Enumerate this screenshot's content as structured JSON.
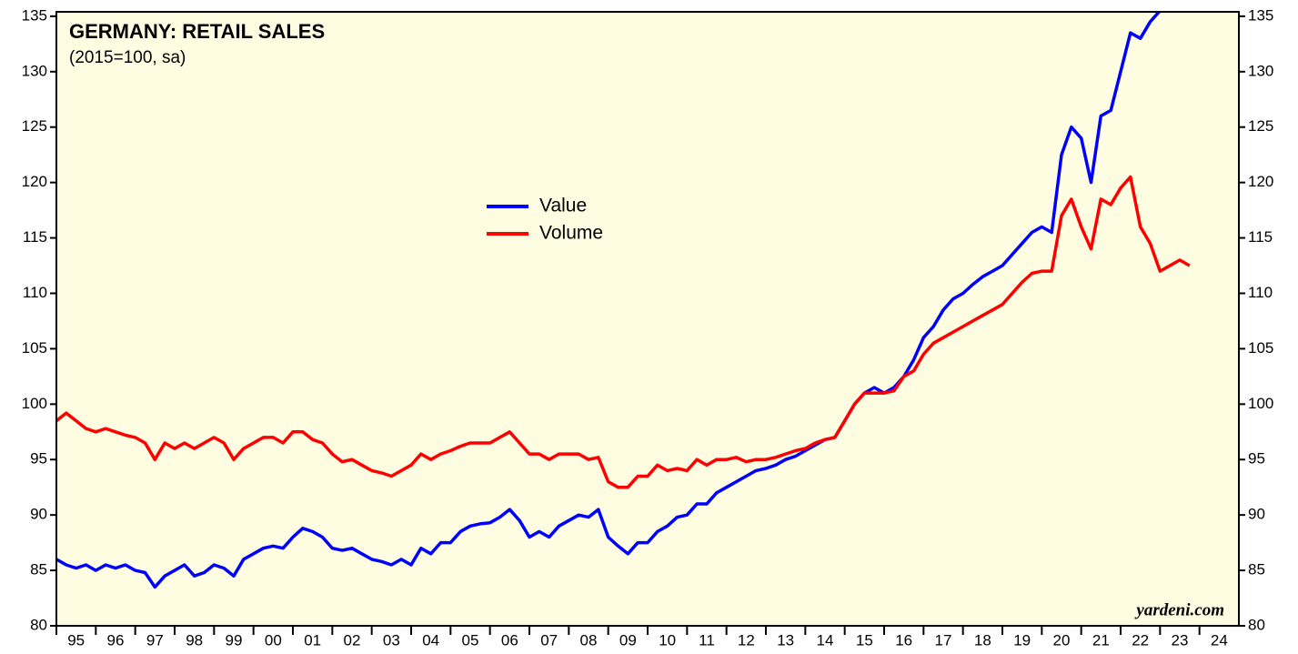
{
  "chart_data": {
    "type": "line",
    "title": "GERMANY: RETAIL SALES",
    "subtitle": "(2015=100, sa)",
    "annotation": "yardeni.com",
    "legend": "center",
    "x": [
      1995,
      1995.25,
      1995.5,
      1995.75,
      1996,
      1996.25,
      1996.5,
      1996.75,
      1997,
      1997.25,
      1997.5,
      1997.75,
      1998,
      1998.25,
      1998.5,
      1998.75,
      1999,
      1999.25,
      1999.5,
      1999.75,
      2000,
      2000.25,
      2000.5,
      2000.75,
      2001,
      2001.25,
      2001.5,
      2001.75,
      2002,
      2002.25,
      2002.5,
      2002.75,
      2003,
      2003.25,
      2003.5,
      2003.75,
      2004,
      2004.25,
      2004.5,
      2004.75,
      2005,
      2005.25,
      2005.5,
      2005.75,
      2006,
      2006.25,
      2006.5,
      2006.75,
      2007,
      2007.25,
      2007.5,
      2007.75,
      2008,
      2008.25,
      2008.5,
      2008.75,
      2009,
      2009.25,
      2009.5,
      2009.75,
      2010,
      2010.25,
      2010.5,
      2010.75,
      2011,
      2011.25,
      2011.5,
      2011.75,
      2012,
      2012.25,
      2012.5,
      2012.75,
      2013,
      2013.25,
      2013.5,
      2013.75,
      2014,
      2014.25,
      2014.5,
      2014.75,
      2015,
      2015.25,
      2015.5,
      2015.75,
      2016,
      2016.25,
      2016.5,
      2016.75,
      2017,
      2017.25,
      2017.5,
      2017.75,
      2018,
      2018.25,
      2018.5,
      2018.75,
      2019,
      2019.25,
      2019.5,
      2019.75,
      2020,
      2020.25,
      2020.5,
      2020.75,
      2021,
      2021.25,
      2021.5,
      2021.75,
      2022,
      2022.25,
      2022.5,
      2022.75,
      2023,
      2023.25,
      2023.5,
      2023.75
    ],
    "series": [
      {
        "name": "Value",
        "color": "#0000ff",
        "values": [
          86,
          85.5,
          85.2,
          85.5,
          85,
          85.5,
          85.2,
          85.5,
          85,
          84.8,
          83.5,
          84.5,
          85,
          85.5,
          84.5,
          84.8,
          85.5,
          85.2,
          84.5,
          86,
          86.5,
          87,
          87.2,
          87,
          88,
          88.8,
          88.5,
          88,
          87,
          86.8,
          87,
          86.5,
          86,
          85.8,
          85.5,
          86,
          85.5,
          87,
          86.5,
          87.5,
          87.5,
          88.5,
          89,
          89.2,
          89.3,
          89.8,
          90.5,
          89.5,
          88,
          88.5,
          88,
          89,
          89.5,
          90,
          89.8,
          90.5,
          88,
          87.2,
          86.5,
          87.5,
          87.5,
          88.5,
          89,
          89.8,
          90,
          91,
          91,
          92,
          92.5,
          93,
          93.5,
          94,
          94.2,
          94.5,
          95,
          95.3,
          95.8,
          96.3,
          96.8,
          97,
          98.5,
          100,
          101,
          101.5,
          101,
          101.5,
          102.5,
          104,
          106,
          107,
          108.5,
          109.5,
          110,
          110.8,
          111.5,
          112,
          112.5,
          113.5,
          114.5,
          115.5,
          116,
          115.5,
          122.5,
          125,
          124,
          120,
          126,
          126.5,
          130,
          133.5,
          133,
          134.5,
          135.5,
          136.5,
          137.5,
          138
        ]
      },
      {
        "name": "Volume",
        "color": "#ff0000",
        "values": [
          98.5,
          99.2,
          98.5,
          97.8,
          97.5,
          97.8,
          97.5,
          97.2,
          97,
          96.5,
          95,
          96.5,
          96,
          96.5,
          96,
          96.5,
          97,
          96.5,
          95,
          96,
          96.5,
          97,
          97,
          96.5,
          97.5,
          97.5,
          96.8,
          96.5,
          95.5,
          94.8,
          95,
          94.5,
          94,
          93.8,
          93.5,
          94,
          94.5,
          95.5,
          95,
          95.5,
          95.8,
          96.2,
          96.5,
          96.5,
          96.5,
          97,
          97.5,
          96.5,
          95.5,
          95.5,
          95,
          95.5,
          95.5,
          95.5,
          95,
          95.2,
          93,
          92.5,
          92.5,
          93.5,
          93.5,
          94.5,
          94,
          94.2,
          94,
          95,
          94.5,
          95,
          95,
          95.2,
          94.8,
          95,
          95,
          95.2,
          95.5,
          95.8,
          96,
          96.5,
          96.8,
          97,
          98.5,
          100,
          101,
          101,
          101,
          101.2,
          102.5,
          103,
          104.5,
          105.5,
          106,
          106.5,
          107,
          107.5,
          108,
          108.5,
          109,
          110,
          111,
          111.8,
          112,
          112,
          117,
          118.5,
          116,
          114,
          118.5,
          118,
          119.5,
          120.5,
          116,
          114.5,
          112,
          112.5,
          113,
          112.5
        ]
      }
    ],
    "xlim": [
      1995,
      2025
    ],
    "xticks": [
      {
        "value": 1995,
        "label": "95"
      },
      {
        "value": 1996,
        "label": "96"
      },
      {
        "value": 1997,
        "label": "97"
      },
      {
        "value": 1998,
        "label": "98"
      },
      {
        "value": 1999,
        "label": "99"
      },
      {
        "value": 2000,
        "label": "00"
      },
      {
        "value": 2001,
        "label": "01"
      },
      {
        "value": 2002,
        "label": "02"
      },
      {
        "value": 2003,
        "label": "03"
      },
      {
        "value": 2004,
        "label": "04"
      },
      {
        "value": 2005,
        "label": "05"
      },
      {
        "value": 2006,
        "label": "06"
      },
      {
        "value": 2007,
        "label": "07"
      },
      {
        "value": 2008,
        "label": "08"
      },
      {
        "value": 2009,
        "label": "09"
      },
      {
        "value": 2010,
        "label": "10"
      },
      {
        "value": 2011,
        "label": "11"
      },
      {
        "value": 2012,
        "label": "12"
      },
      {
        "value": 2013,
        "label": "13"
      },
      {
        "value": 2014,
        "label": "14"
      },
      {
        "value": 2015,
        "label": "15"
      },
      {
        "value": 2016,
        "label": "16"
      },
      {
        "value": 2017,
        "label": "17"
      },
      {
        "value": 2018,
        "label": "18"
      },
      {
        "value": 2019,
        "label": "19"
      },
      {
        "value": 2020,
        "label": "20"
      },
      {
        "value": 2021,
        "label": "21"
      },
      {
        "value": 2022,
        "label": "22"
      },
      {
        "value": 2023,
        "label": "23"
      },
      {
        "value": 2024,
        "label": "24"
      }
    ],
    "ylim": [
      80,
      135.4
    ],
    "yticks": [
      80,
      85,
      90,
      95,
      100,
      105,
      110,
      115,
      120,
      125,
      130,
      135
    ]
  }
}
